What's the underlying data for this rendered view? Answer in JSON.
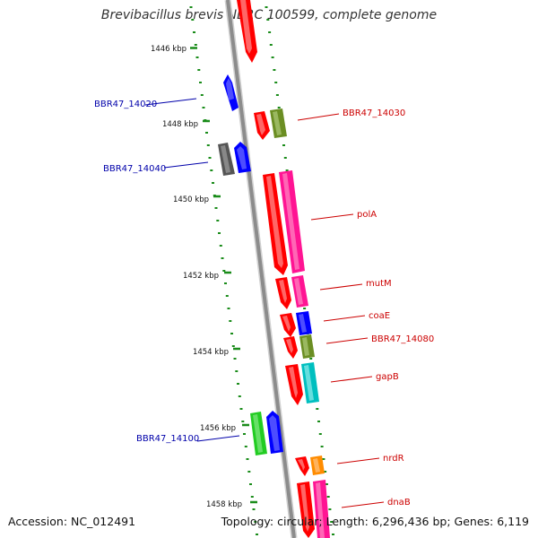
{
  "title": "Brevibacillus brevis NBRC 100599, complete genome",
  "footer": {
    "accession": "Accession: NC_012491",
    "topology": "Topology: circular; Length: 6,296,436 bp; Genes: 6,119"
  },
  "colors": {
    "backbone": "#8c8c8c",
    "tick": "#1a8c1a",
    "tick_label": "#111111",
    "label_forward": "#cc0000",
    "label_reverse": "#0000aa",
    "gene_red": "#ff0000",
    "gene_blue": "#0000ff",
    "gene_olive": "#6b8e23",
    "gene_gray": "#555555",
    "gene_magenta": "#ff1493",
    "gene_cyan": "#00bfbf",
    "gene_green": "#22cc22",
    "gene_orange": "#ff8c00"
  },
  "ticks": [
    "1446 kbp",
    "1448 kbp",
    "1450 kbp",
    "1452 kbp",
    "1454 kbp",
    "1456 kbp",
    "1458 kbp"
  ],
  "gene_labels": {
    "BBR47_14020": "BBR47_14020",
    "BBR47_14030": "BBR47_14030",
    "BBR47_14040": "BBR47_14040",
    "polA": "polA",
    "mutM": "mutM",
    "coaE": "coaE",
    "BBR47_14080": "BBR47_14080",
    "gapB": "gapB",
    "BBR47_14100": "BBR47_14100",
    "nrdR": "nrdR",
    "dnaB": "dnaB"
  }
}
